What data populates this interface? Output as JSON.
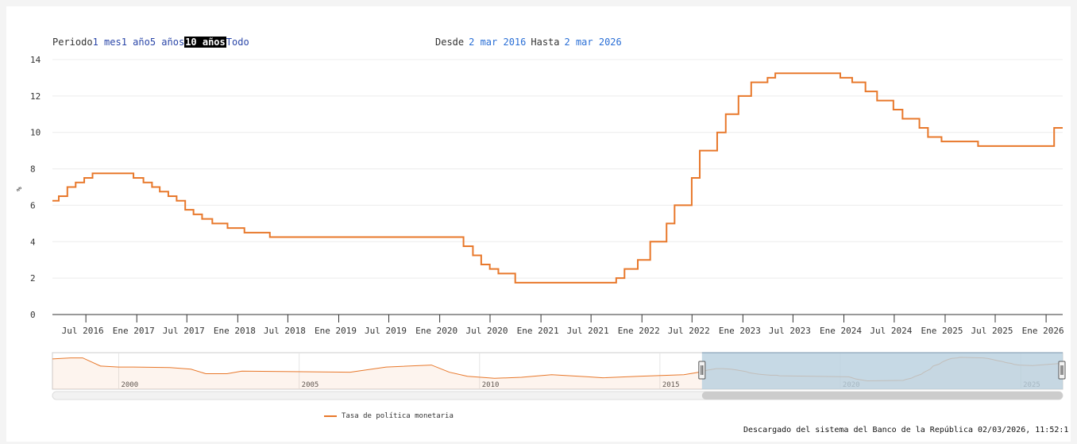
{
  "range_selector": {
    "label": "Periodo",
    "buttons": [
      {
        "label": "1 mes",
        "active": false
      },
      {
        "label": "1 año",
        "active": false
      },
      {
        "label": "5 años",
        "active": false
      },
      {
        "label": "10 años",
        "active": true
      },
      {
        "label": "Todo",
        "active": false
      }
    ]
  },
  "date_range": {
    "from_label": "Desde",
    "from_value": "2 mar 2016",
    "to_label": "Hasta",
    "to_value": "2 mar 2026"
  },
  "legend": {
    "label": "Tasa de política monetaria"
  },
  "credits": "Descargado del sistema del Banco de la República 02/03/2026, 11:52:1",
  "colors": {
    "series": "#e8782b",
    "navigator_mask": "#b8cfdf"
  },
  "navigator": {
    "tick_labels": [
      "2000",
      "2005",
      "2010",
      "2015",
      "2020",
      "2025"
    ]
  },
  "chart_data": {
    "type": "line",
    "step": true,
    "title": "",
    "xlabel": "",
    "ylabel": "%",
    "ylim": [
      0,
      14
    ],
    "y_ticks": [
      0,
      2,
      4,
      6,
      8,
      10,
      12,
      14
    ],
    "xlim": [
      "2016-03-02",
      "2026-03-02"
    ],
    "x_tick_labels": [
      "Jul 2016",
      "Ene 2017",
      "Jul 2017",
      "Ene 2018",
      "Jul 2018",
      "Ene 2019",
      "Jul 2019",
      "Ene 2020",
      "Jul 2020",
      "Ene 2021",
      "Jul 2021",
      "Ene 2022",
      "Jul 2022",
      "Ene 2023",
      "Jul 2023",
      "Ene 2024",
      "Jul 2024",
      "Ene 2025",
      "Jul 2025",
      "Ene 2026"
    ],
    "grid": true,
    "legend_position": "bottom",
    "series": [
      {
        "name": "Tasa de política monetaria",
        "x": [
          "2016-03-02",
          "2016-03-25",
          "2016-04-25",
          "2016-05-25",
          "2016-06-25",
          "2016-07-25",
          "2016-10-01",
          "2016-12-20",
          "2017-01-25",
          "2017-02-25",
          "2017-03-25",
          "2017-04-25",
          "2017-05-25",
          "2017-06-25",
          "2017-07-25",
          "2017-08-25",
          "2017-10-01",
          "2017-11-25",
          "2018-01-25",
          "2018-03-25",
          "2018-04-27",
          "2020-03-27",
          "2020-04-30",
          "2020-05-30",
          "2020-06-30",
          "2020-07-31",
          "2020-09-30",
          "2021-09-30",
          "2021-10-30",
          "2021-12-17",
          "2022-01-31",
          "2022-03-31",
          "2022-04-29",
          "2022-06-30",
          "2022-07-29",
          "2022-09-30",
          "2022-10-31",
          "2022-12-16",
          "2023-01-31",
          "2023-03-31",
          "2023-04-28",
          "2023-12-19",
          "2024-01-31",
          "2024-03-19",
          "2024-04-30",
          "2024-06-28",
          "2024-07-31",
          "2024-09-30",
          "2024-10-31",
          "2024-12-19",
          "2025-04-30",
          "2026-01-30"
        ],
        "values": [
          6.25,
          6.5,
          7.0,
          7.25,
          7.5,
          7.75,
          7.75,
          7.5,
          7.25,
          7.0,
          6.75,
          6.5,
          6.25,
          5.75,
          5.5,
          5.25,
          5.0,
          4.75,
          4.5,
          4.5,
          4.25,
          3.75,
          3.25,
          2.75,
          2.5,
          2.25,
          1.75,
          2.0,
          2.5,
          3.0,
          4.0,
          5.0,
          6.0,
          7.5,
          9.0,
          10.0,
          11.0,
          12.0,
          12.75,
          13.0,
          13.25,
          13.0,
          12.75,
          12.25,
          11.75,
          11.25,
          10.75,
          10.25,
          9.75,
          9.5,
          9.25,
          10.25
        ]
      }
    ]
  }
}
